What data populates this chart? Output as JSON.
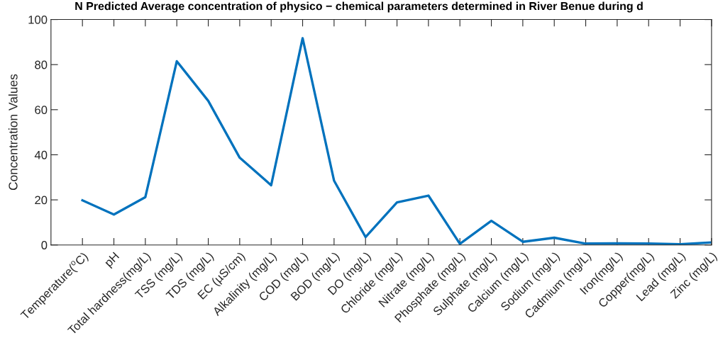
{
  "chart_data": {
    "type": "line",
    "title": "N Predicted Average concentration of physico − chemical parameters determined in River Benue during d",
    "ylabel": "Concentration Values",
    "categories": [
      "Temperature($^{o}$C)",
      "pH",
      "Total hardness(mg/L)",
      "TSS (mg/L)",
      "TDS (mg/L)",
      "EC (µS/cm)",
      "Alkalinity (mg/L)",
      "COD (mg/L)",
      "BOD (mg/L)",
      "DO (mg/L)",
      "Chloride (mg/L)",
      "Nitrate (mg/L)",
      "Phosphate (mg/L)",
      "Sulphate (mg/L)",
      "Calcium (mg/L)",
      "Sodium (mg/L)",
      "Cadmium (mg/L)",
      "Iron(mg/L)",
      "Copper(mg/L)",
      "Lead (mg/L)",
      "Zinc (mg/L)"
    ],
    "series": [
      {
        "color": "#0072bd",
        "values": [
          19.8,
          13.5,
          21.2,
          81.5,
          63.9,
          38.7,
          26.5,
          91.7,
          28.5,
          3.5,
          18.9,
          21.9,
          0.5,
          10.7,
          1.4,
          3.2,
          0.6,
          0.7,
          0.6,
          0.3,
          1.1
        ]
      }
    ],
    "ylim": [
      0,
      100
    ],
    "yticks": [
      0,
      20,
      40,
      60,
      80,
      100
    ],
    "line_style": "solid"
  }
}
